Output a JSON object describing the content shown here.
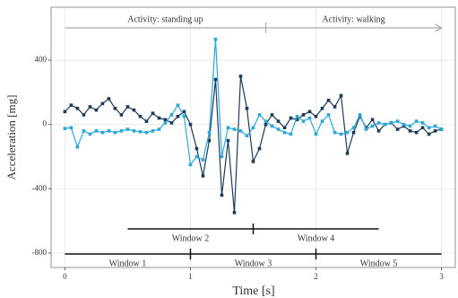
{
  "chart_data": {
    "type": "line",
    "xlabel": "Time [s]",
    "ylabel": "Acceleration [mg]",
    "x": [
      0,
      0.05,
      0.1,
      0.15,
      0.2,
      0.25,
      0.3,
      0.35,
      0.4,
      0.45,
      0.5,
      0.55,
      0.6,
      0.65,
      0.7,
      0.75,
      0.8,
      0.85,
      0.9,
      0.95,
      1,
      1.05,
      1.1,
      1.15,
      1.2,
      1.25,
      1.3,
      1.35,
      1.4,
      1.45,
      1.5,
      1.55,
      1.6,
      1.65,
      1.7,
      1.75,
      1.8,
      1.85,
      1.9,
      1.95,
      2,
      2.05,
      2.1,
      2.15,
      2.2,
      2.25,
      2.3,
      2.35,
      2.4,
      2.45,
      2.5,
      2.55,
      2.6,
      2.65,
      2.7,
      2.75,
      2.8,
      2.85,
      2.9,
      2.95,
      3
    ],
    "series": [
      {
        "color": "#1d3b58",
        "values": [
          80,
          120,
          100,
          60,
          110,
          90,
          130,
          160,
          100,
          60,
          110,
          90,
          50,
          20,
          70,
          40,
          30,
          10,
          50,
          80,
          0,
          -150,
          -320,
          -100,
          280,
          -440,
          -100,
          -548,
          300,
          100,
          -230,
          -150,
          0,
          60,
          20,
          -20,
          40,
          30,
          60,
          80,
          50,
          100,
          150,
          110,
          180,
          -180,
          -50,
          50,
          -20,
          30,
          -40,
          0,
          10,
          -30,
          -10,
          -40,
          -50,
          -20,
          -60,
          -40,
          -30
        ]
      },
      {
        "color": "#2aa8d8",
        "values": [
          -25,
          -20,
          -140,
          -40,
          -60,
          -40,
          -50,
          -40,
          -50,
          -40,
          -30,
          -40,
          -45,
          -50,
          -40,
          -30,
          10,
          60,
          120,
          50,
          -250,
          -200,
          -220,
          -50,
          530,
          -200,
          -20,
          -30,
          -40,
          -70,
          -20,
          60,
          20,
          -10,
          -30,
          -50,
          -60,
          50,
          20,
          40,
          -60,
          20,
          60,
          -50,
          -60,
          -50,
          -20,
          60,
          -30,
          -10,
          10,
          0,
          10,
          20,
          0,
          -10,
          20,
          10,
          -20,
          -10,
          -30
        ]
      }
    ],
    "xlim": [
      -0.11,
      3.11
    ],
    "ylim": [
      -890,
      730
    ],
    "xticks": [
      0,
      1,
      2,
      3
    ],
    "yticks": [
      -800,
      -400,
      0,
      400
    ],
    "grid": true,
    "activities": [
      {
        "label": "Activity: standing up",
        "start": 0,
        "end": 1.6
      },
      {
        "label": "Activity: walking",
        "start": 1.6,
        "end": 3
      }
    ],
    "windows": [
      {
        "label": "Window 1",
        "start": 0,
        "end": 1
      },
      {
        "label": "Window 2",
        "start": 0.5,
        "end": 1.5
      },
      {
        "label": "Window 3",
        "start": 1,
        "end": 2
      },
      {
        "label": "Window 4",
        "start": 1.5,
        "end": 2.5
      },
      {
        "label": "Window 5",
        "start": 2,
        "end": 3
      }
    ]
  }
}
